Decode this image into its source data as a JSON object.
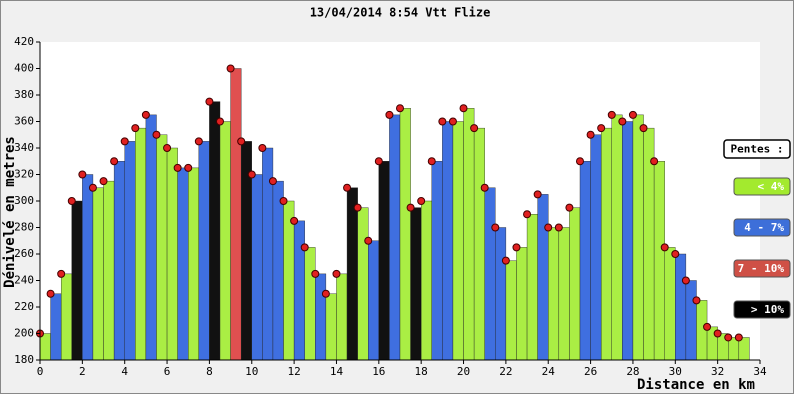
{
  "chart_data": {
    "type": "bar",
    "title": "13/04/2014 8:54 Vtt Flize",
    "x_label": "Distance en km",
    "y_label": "Dénivelé en metres",
    "x": [
      0,
      0.5,
      1,
      1.5,
      2,
      2.5,
      3,
      3.5,
      4,
      4.5,
      5,
      5.5,
      6,
      6.5,
      7,
      7.5,
      8,
      8.5,
      9,
      9.5,
      10,
      10.5,
      11,
      11.5,
      12,
      12.5,
      13,
      13.5,
      14,
      14.5,
      15,
      15.5,
      16,
      16.5,
      17,
      17.5,
      18,
      18.5,
      19,
      19.5,
      20,
      20.5,
      21,
      21.5,
      22,
      22.5,
      23,
      23.5,
      24,
      24.5,
      25,
      25.5,
      26,
      26.5,
      27,
      27.5,
      28,
      28.5,
      29,
      29.5,
      30,
      30.5,
      31,
      31.5,
      32,
      32.5,
      33
    ],
    "values": [
      200,
      230,
      245,
      300,
      320,
      310,
      315,
      330,
      345,
      355,
      365,
      350,
      340,
      325,
      325,
      345,
      375,
      360,
      400,
      345,
      320,
      340,
      315,
      300,
      285,
      265,
      245,
      230,
      245,
      310,
      295,
      270,
      330,
      365,
      370,
      295,
      300,
      330,
      360,
      360,
      370,
      355,
      310,
      280,
      255,
      265,
      290,
      305,
      280,
      280,
      295,
      330,
      350,
      355,
      365,
      360,
      365,
      355,
      330,
      265,
      260,
      240,
      225,
      205,
      200,
      197,
      197
    ],
    "colors": [
      "#aaee44",
      "#3f6fe0",
      "#aaee44",
      "#111111",
      "#3f6fe0",
      "#aaee44",
      "#aaee44",
      "#3f6fe0",
      "#3f6fe0",
      "#aaee44",
      "#3f6fe0",
      "#aaee44",
      "#aaee44",
      "#3f6fe0",
      "#aaee44",
      "#3f6fe0",
      "#111111",
      "#aaee44",
      "#e05050",
      "#111111",
      "#3f6fe0",
      "#3f6fe0",
      "#3f6fe0",
      "#aaee44",
      "#3f6fe0",
      "#aaee44",
      "#3f6fe0",
      "#aaee44",
      "#aaee44",
      "#111111",
      "#aaee44",
      "#3f6fe0",
      "#111111",
      "#3f6fe0",
      "#aaee44",
      "#111111",
      "#aaee44",
      "#3f6fe0",
      "#3f6fe0",
      "#aaee44",
      "#aaee44",
      "#aaee44",
      "#3f6fe0",
      "#3f6fe0",
      "#aaee44",
      "#aaee44",
      "#aaee44",
      "#3f6fe0",
      "#aaee44",
      "#aaee44",
      "#aaee44",
      "#3f6fe0",
      "#3f6fe0",
      "#aaee44",
      "#aaee44",
      "#3f6fe0",
      "#aaee44",
      "#aaee44",
      "#aaee44",
      "#aaee44",
      "#3f6fe0",
      "#3f6fe0",
      "#aaee44",
      "#aaee44",
      "#aaee44",
      "#aaee44",
      "#aaee44"
    ],
    "marker_color": "#e02020",
    "xlim": [
      0,
      34
    ],
    "xticks": [
      0,
      2,
      4,
      6,
      8,
      10,
      12,
      14,
      16,
      18,
      20,
      22,
      24,
      26,
      28,
      30,
      32,
      34
    ],
    "ylim": [
      180,
      420
    ],
    "yticks": [
      180,
      200,
      220,
      240,
      260,
      280,
      300,
      320,
      340,
      360,
      380,
      400,
      420
    ],
    "legend_title": "Pentes :",
    "legend": [
      {
        "label": "< 4%",
        "color": "#a3ea2e"
      },
      {
        "label": "4 - 7%",
        "color": "#3d6fd9"
      },
      {
        "label": "7 - 10%",
        "color": "#cf5046"
      },
      {
        "label": "> 10%",
        "color": "#000000"
      }
    ]
  }
}
